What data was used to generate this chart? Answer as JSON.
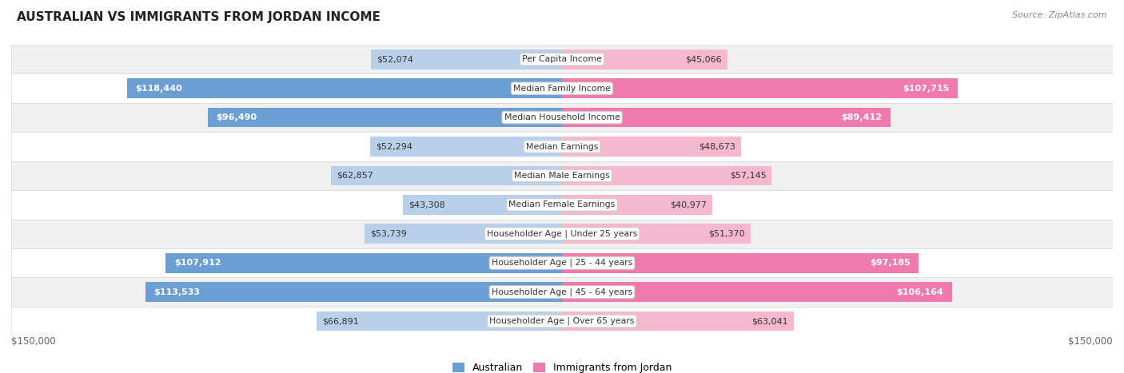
{
  "title": "AUSTRALIAN VS IMMIGRANTS FROM JORDAN INCOME",
  "source": "Source: ZipAtlas.com",
  "categories": [
    "Per Capita Income",
    "Median Family Income",
    "Median Household Income",
    "Median Earnings",
    "Median Male Earnings",
    "Median Female Earnings",
    "Householder Age | Under 25 years",
    "Householder Age | 25 - 44 years",
    "Householder Age | 45 - 64 years",
    "Householder Age | Over 65 years"
  ],
  "australian_values": [
    52074,
    118440,
    96490,
    52294,
    62857,
    43308,
    53739,
    107912,
    113533,
    66891
  ],
  "jordan_values": [
    45066,
    107715,
    89412,
    48673,
    57145,
    40977,
    51370,
    97185,
    106164,
    63041
  ],
  "australian_labels": [
    "$52,074",
    "$118,440",
    "$96,490",
    "$52,294",
    "$62,857",
    "$43,308",
    "$53,739",
    "$107,912",
    "$113,533",
    "$66,891"
  ],
  "jordan_labels": [
    "$45,066",
    "$107,715",
    "$89,412",
    "$48,673",
    "$57,145",
    "$40,977",
    "$51,370",
    "$97,185",
    "$106,164",
    "$63,041"
  ],
  "max_value": 150000,
  "australian_color_light": "#b8d0ea",
  "australian_color_dark": "#6b9fd4",
  "jordan_color_light": "#f5b8cf",
  "jordan_color_dark": "#f07aab",
  "label_dark_threshold": 75000,
  "background_color": "#ffffff",
  "row_colors": [
    "#f0f0f0",
    "#ffffff"
  ],
  "row_border_color": "#d8d8d8",
  "center_box_color": "#ffffff",
  "center_box_border": "#cccccc",
  "axis_label_color": "#666666",
  "dark_text_color": "#333333",
  "white_text_color": "#ffffff"
}
